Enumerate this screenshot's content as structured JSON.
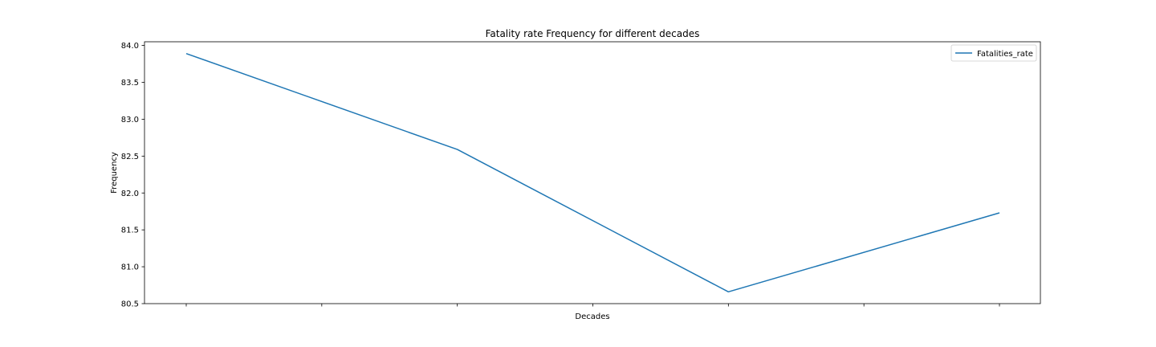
{
  "chart_data": {
    "type": "line",
    "title": "Fatality rate Frequency for different decades",
    "xlabel": "Decades",
    "ylabel": "Frequency",
    "x_index": [
      0,
      1,
      2,
      3,
      4,
      5,
      6
    ],
    "x_tick_labels": [
      "",
      "",
      "",
      "",
      "",
      "",
      ""
    ],
    "ylim": [
      80.5,
      84.05
    ],
    "y_ticks": [
      80.5,
      81.0,
      81.5,
      82.0,
      82.5,
      83.0,
      83.5,
      84.0
    ],
    "y_tick_labels": [
      "80.5",
      "81.0",
      "81.5",
      "82.0",
      "82.5",
      "83.0",
      "83.5",
      "84.0"
    ],
    "grid": false,
    "legend_position": "top-right",
    "series": [
      {
        "name": "Fatalities_rate",
        "color": "#1f77b4",
        "x": [
          0,
          2,
          4,
          6
        ],
        "values": [
          83.89,
          82.59,
          80.66,
          81.73
        ]
      }
    ]
  }
}
